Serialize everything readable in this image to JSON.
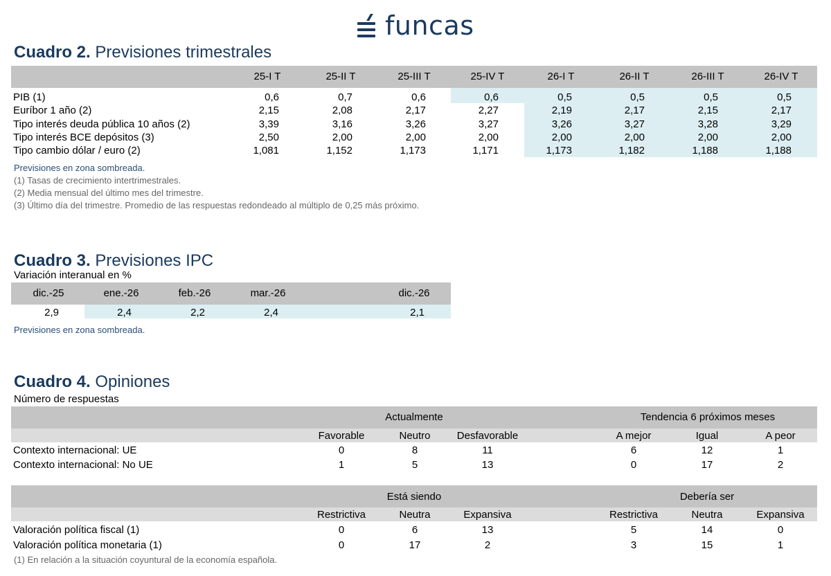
{
  "logo": {
    "text": "funcas"
  },
  "cuadro2": {
    "title_bold": "Cuadro 2.",
    "title_rest": " Previsiones trimestrales",
    "columns": [
      "25-I T",
      "25-II T",
      "25-III T",
      "25-IV T",
      "26-I T",
      "26-II T",
      "26-III T",
      "26-IV T"
    ],
    "rows": [
      {
        "label": "PIB (1)",
        "values": [
          "0,6",
          "0,7",
          "0,6",
          "0,6",
          "0,5",
          "0,5",
          "0,5",
          "0,5"
        ]
      },
      {
        "label": "Euríbor 1 año (2)",
        "values": [
          "2,15",
          "2,08",
          "2,17",
          "2,27",
          "2,19",
          "2,17",
          "2,15",
          "2,17"
        ]
      },
      {
        "label": "Tipo interés deuda pública 10 años (2)",
        "values": [
          "3,39",
          "3,16",
          "3,26",
          "3,27",
          "3,26",
          "3,27",
          "3,28",
          "3,29"
        ]
      },
      {
        "label": "Tipo interés BCE depósitos (3)",
        "values": [
          "2,50",
          "2,00",
          "2,00",
          "2,00",
          "2,00",
          "2,00",
          "2,00",
          "2,00"
        ]
      },
      {
        "label": "Tipo cambio dólar / euro (2)",
        "values": [
          "1,081",
          "1,152",
          "1,173",
          "1,171",
          "1,173",
          "1,182",
          "1,188",
          "1,188"
        ]
      }
    ],
    "notes": [
      "Previsiones en zona sombreada.",
      "(1) Tasas de crecimiento intertrimestrales.",
      "(2) Media mensual del último mes del trimestre.",
      "(3) Último día del trimestre. Promedio de las respuestas redondeado al múltiplo de 0,25 más próximo."
    ]
  },
  "cuadro3": {
    "title_bold": "Cuadro 3.",
    "title_rest": " Previsiones IPC",
    "subtitle": "Variación interanual en %",
    "columns": [
      "dic.-25",
      "ene.-26",
      "feb.-26",
      "mar.-26",
      "dic.-26"
    ],
    "values": [
      "2,9",
      "2,4",
      "2,2",
      "2,4",
      "2,1"
    ],
    "note": "Previsiones en zona sombreada."
  },
  "cuadro4": {
    "title_bold": "Cuadro 4.",
    "title_rest": " Opiniones",
    "subtitle": "Número de respuestas",
    "block1": {
      "group_left": "Actualmente",
      "group_right": "Tendencia 6 próximos meses",
      "columns": [
        "Favorable",
        "Neutro",
        "Desfavorable",
        "A mejor",
        "Igual",
        "A peor"
      ],
      "rows": [
        {
          "label": "Contexto internacional:  UE",
          "values": [
            "0",
            "8",
            "11",
            "6",
            "12",
            "1"
          ]
        },
        {
          "label": "Contexto internacional: No UE",
          "values": [
            "1",
            "5",
            "13",
            "0",
            "17",
            "2"
          ]
        }
      ]
    },
    "block2": {
      "group_left": "Está siendo",
      "group_right": "Debería ser",
      "columns": [
        "Restrictiva",
        "Neutra",
        "Expansiva",
        "Restrictiva",
        "Neutra",
        "Expansiva"
      ],
      "rows": [
        {
          "label": "Valoración política fiscal (1)",
          "values": [
            "0",
            "6",
            "13",
            "5",
            "14",
            "0"
          ]
        },
        {
          "label": "Valoración política monetaria (1)",
          "values": [
            "0",
            "17",
            "2",
            "3",
            "15",
            "1"
          ]
        }
      ]
    },
    "note": "(1) En relación a la situación coyuntural de la economía española."
  }
}
